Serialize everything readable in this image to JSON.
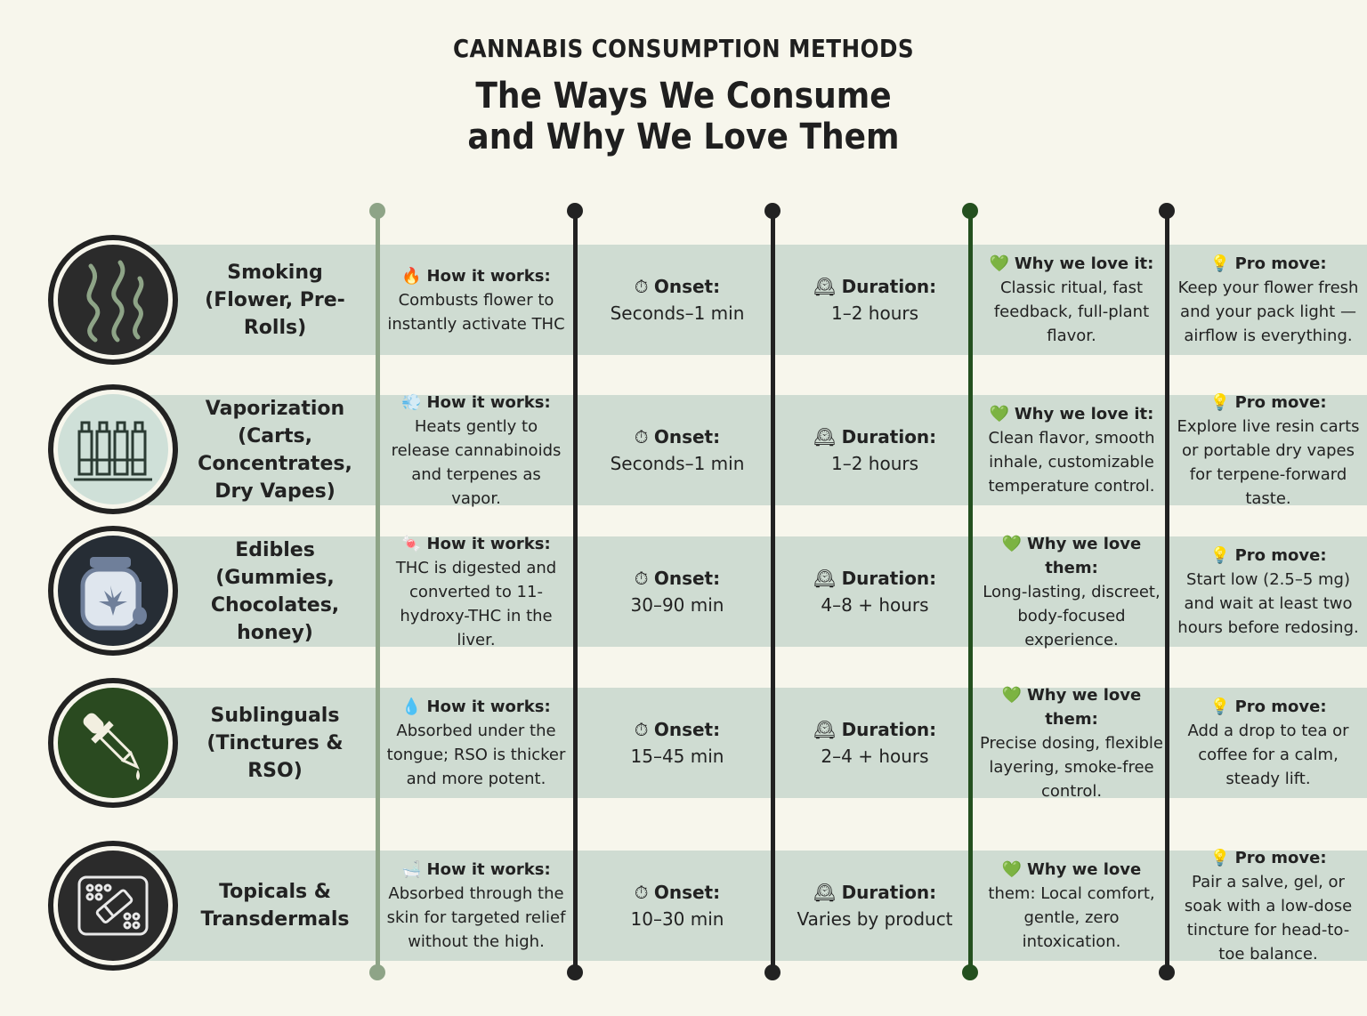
{
  "header": {
    "kicker": "CANNABIS CONSUMPTION METHODS",
    "title_line1": "The Ways We Consume",
    "title_line2": "and Why We Love Them"
  },
  "colors": {
    "background": "#f7f6ec",
    "band": "#cfdcd2",
    "line_light": "#8ea487",
    "line_dark": "#222222",
    "line_green": "#24501f"
  },
  "rows": [
    {
      "icon": "smoke-icon",
      "method": "Smoking (Flower, Pre-Rolls)",
      "how_emoji": "🔥",
      "how_label": "How it works:",
      "how_text": "Combusts flower to instantly activate THC",
      "onset_emoji": "⏱",
      "onset_label": "Onset:",
      "onset_value": "Seconds–1 min",
      "duration_emoji": "🕰",
      "duration_label": "Duration:",
      "duration_value": "1–2 hours",
      "why_emoji": "💚",
      "why_label": "Why we love it:",
      "why_text": "Classic ritual, fast feedback, full-plant flavor.",
      "pro_emoji": "💡",
      "pro_label": "Pro move:",
      "pro_text": "Keep your flower fresh and your pack light — airflow is everything."
    },
    {
      "icon": "vape-cartridges-icon",
      "method": "Vaporization (Carts, Concentrates, Dry Vapes)",
      "how_emoji": "💨",
      "how_label": "How it works:",
      "how_text": "Heats gently to release cannabinoids and terpenes as vapor.",
      "onset_emoji": "⏱",
      "onset_label": "Onset:",
      "onset_value": "Seconds–1 min",
      "duration_emoji": "🕰",
      "duration_label": "Duration:",
      "duration_value": "1–2 hours",
      "why_emoji": "💚",
      "why_label": "Why we love it:",
      "why_text": "Clean flavor, smooth inhale, customizable temperature control.",
      "pro_emoji": "💡",
      "pro_label": "Pro move:",
      "pro_text": "Explore live resin carts or portable dry vapes for terpene-forward taste."
    },
    {
      "icon": "edible-jar-icon",
      "method": "Edibles (Gummies, Chocolates, honey)",
      "how_emoji": "🍬",
      "how_label": "How it works:",
      "how_text": "THC is digested and converted to 11-hydroxy-THC in the liver.",
      "onset_emoji": "⏱",
      "onset_label": "Onset:",
      "onset_value": "30–90 min",
      "duration_emoji": "🕰",
      "duration_label": "Duration:",
      "duration_value": "4–8 + hours",
      "why_emoji": "💚",
      "why_label": "Why we love them:",
      "why_text": "Long-lasting, discreet, body-focused experience.",
      "pro_emoji": "💡",
      "pro_label": "Pro move:",
      "pro_text": "Start low (2.5–5 mg) and wait at least two hours before redosing."
    },
    {
      "icon": "dropper-icon",
      "method": "Sublinguals (Tinctures & RSO)",
      "how_emoji": "💧",
      "how_label": "How it works:",
      "how_text": "Absorbed under the tongue; RSO is thicker and more potent.",
      "onset_emoji": "⏱",
      "onset_label": "Onset:",
      "onset_value": "15–45 min",
      "duration_emoji": "🕰",
      "duration_label": "Duration:",
      "duration_value": "2–4 + hours",
      "why_emoji": "💚",
      "why_label": "Why we love them:",
      "why_text": "Precise dosing, flexible layering, smoke-free control.",
      "pro_emoji": "💡",
      "pro_label": "Pro move:",
      "pro_text": "Add a drop to tea or coffee for a calm, steady lift."
    },
    {
      "icon": "transdermal-patch-icon",
      "method": "Topicals & Transdermals",
      "how_emoji": "🛁",
      "how_label": "How it works:",
      "how_text": "Absorbed through the skin for targeted relief without the high.",
      "onset_emoji": "⏱",
      "onset_label": "Onset:",
      "onset_value": "10–30 min",
      "duration_emoji": "🕰",
      "duration_label": "Duration:",
      "duration_value": "Varies by product",
      "why_emoji": "💚",
      "why_label": "Why we love",
      "why_text": "them: Local comfort, gentle, zero intoxication.",
      "pro_emoji": "💡",
      "pro_label": "Pro move:",
      "pro_text": "Pair a salve, gel, or soak with a low-dose tincture for head-to-toe balance."
    }
  ]
}
